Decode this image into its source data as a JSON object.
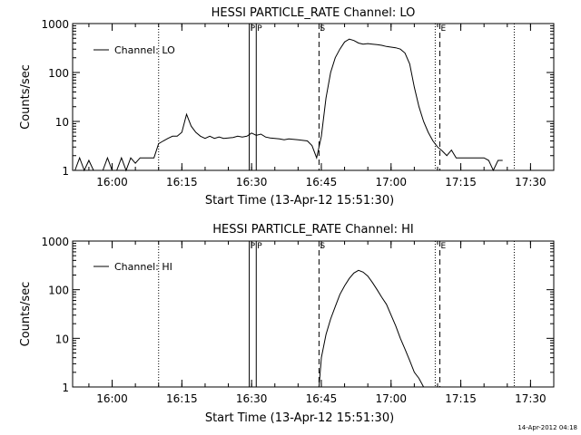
{
  "footer": {
    "timestamp": "14-Apr-2012 04:18"
  },
  "chart_data": [
    {
      "type": "line",
      "title": "HESSI PARTICLE_RATE Channel: LO",
      "xlabel": "Start Time (13-Apr-12 15:51:30)",
      "ylabel": "Counts/sec",
      "yscale": "log",
      "ylim": [
        1,
        1000
      ],
      "xlim": [
        "15:51:30",
        "17:35:00"
      ],
      "xticks": [
        "16:00",
        "16:15",
        "16:30",
        "16:45",
        "17:00",
        "17:15",
        "17:30"
      ],
      "yticks": [
        "1",
        "10",
        "100",
        "1000"
      ],
      "legend": {
        "label": "Channel: LO",
        "position": "top-left"
      },
      "markers": [
        {
          "label": "P",
          "time": "16:29:30",
          "style": "solid"
        },
        {
          "label": "P",
          "time": "16:31:00",
          "style": "solid"
        },
        {
          "label": "S",
          "time": "16:44:30",
          "style": "dashed"
        },
        {
          "label": "E",
          "time": "17:10:30",
          "style": "dashed"
        },
        {
          "label": "",
          "time": "16:10:00",
          "style": "dotted"
        },
        {
          "label": "",
          "time": "17:09:30",
          "style": "dotted"
        },
        {
          "label": "",
          "time": "17:26:30",
          "style": "dotted"
        }
      ],
      "x": [
        "15:52",
        "15:53",
        "15:54",
        "15:55",
        "15:56",
        "15:57",
        "15:58",
        "15:59",
        "16:00",
        "16:01",
        "16:02",
        "16:03",
        "16:04",
        "16:05",
        "16:06",
        "16:07",
        "16:08",
        "16:09",
        "16:10",
        "16:11",
        "16:12",
        "16:13",
        "16:14",
        "16:15",
        "16:16",
        "16:17",
        "16:18",
        "16:19",
        "16:20",
        "16:21",
        "16:22",
        "16:23",
        "16:24",
        "16:25",
        "16:26",
        "16:27",
        "16:28",
        "16:29",
        "16:30",
        "16:31",
        "16:32",
        "16:33",
        "16:34",
        "16:35",
        "16:36",
        "16:37",
        "16:38",
        "16:39",
        "16:40",
        "16:41",
        "16:42",
        "16:43",
        "16:44",
        "16:45",
        "16:46",
        "16:47",
        "16:48",
        "16:49",
        "16:50",
        "16:51",
        "16:52",
        "16:53",
        "16:54",
        "16:55",
        "16:56",
        "16:57",
        "16:58",
        "16:59",
        "17:00",
        "17:01",
        "17:02",
        "17:03",
        "17:04",
        "17:05",
        "17:06",
        "17:07",
        "17:08",
        "17:09",
        "17:10",
        "17:11",
        "17:12",
        "17:13",
        "17:14",
        "17:15",
        "17:16",
        "17:17",
        "17:18",
        "17:19",
        "17:20",
        "17:21",
        "17:22",
        "17:23",
        "17:24"
      ],
      "values": [
        1,
        1.8,
        1,
        1.6,
        1,
        1,
        1,
        1.8,
        1,
        1,
        1.8,
        1,
        1.8,
        1.4,
        1.8,
        1.8,
        1.8,
        1.8,
        3.5,
        4,
        4.5,
        5,
        5,
        6,
        14,
        8,
        6,
        5,
        4.5,
        5,
        4.5,
        4.8,
        4.5,
        4.6,
        4.7,
        5,
        4.8,
        5,
        5.8,
        5.2,
        5.5,
        4.8,
        4.6,
        4.5,
        4.4,
        4.2,
        4.4,
        4.3,
        4.2,
        4.1,
        4,
        3.2,
        1.8,
        5,
        30,
        100,
        200,
        300,
        420,
        480,
        450,
        400,
        380,
        390,
        380,
        370,
        360,
        340,
        330,
        320,
        300,
        250,
        150,
        50,
        20,
        10,
        6,
        4,
        3,
        2.5,
        2,
        2.6,
        1.8,
        1.8,
        1.8,
        1.8,
        1.8,
        1.8,
        1.8,
        1.6,
        1,
        1.6,
        1.6
      ]
    },
    {
      "type": "line",
      "title": "HESSI PARTICLE_RATE Channel: HI",
      "xlabel": "Start Time (13-Apr-12 15:51:30)",
      "ylabel": "Counts/sec",
      "yscale": "log",
      "ylim": [
        1,
        1000
      ],
      "xlim": [
        "15:51:30",
        "17:35:00"
      ],
      "xticks": [
        "16:00",
        "16:15",
        "16:30",
        "16:45",
        "17:00",
        "17:15",
        "17:30"
      ],
      "yticks": [
        "1",
        "10",
        "100",
        "1000"
      ],
      "legend": {
        "label": "Channel: HI",
        "position": "top-left"
      },
      "markers": [
        {
          "label": "P",
          "time": "16:29:30",
          "style": "solid"
        },
        {
          "label": "P",
          "time": "16:31:00",
          "style": "solid"
        },
        {
          "label": "S",
          "time": "16:44:30",
          "style": "dashed"
        },
        {
          "label": "E",
          "time": "17:10:30",
          "style": "dashed"
        },
        {
          "label": "",
          "time": "16:10:00",
          "style": "dotted"
        },
        {
          "label": "",
          "time": "17:09:30",
          "style": "dotted"
        },
        {
          "label": "",
          "time": "17:26:30",
          "style": "dotted"
        }
      ],
      "x": [
        "16:44:30",
        "16:45",
        "16:46",
        "16:47",
        "16:48",
        "16:49",
        "16:50",
        "16:51",
        "16:52",
        "16:53",
        "16:54",
        "16:55",
        "16:56",
        "16:57",
        "16:58",
        "16:59",
        "17:00",
        "17:01",
        "17:02",
        "17:03",
        "17:04",
        "17:05",
        "17:06",
        "17:07"
      ],
      "values": [
        1,
        4,
        12,
        25,
        45,
        80,
        120,
        170,
        220,
        250,
        230,
        190,
        140,
        100,
        70,
        50,
        30,
        18,
        10,
        6,
        3.5,
        2,
        1.5,
        1
      ]
    }
  ]
}
